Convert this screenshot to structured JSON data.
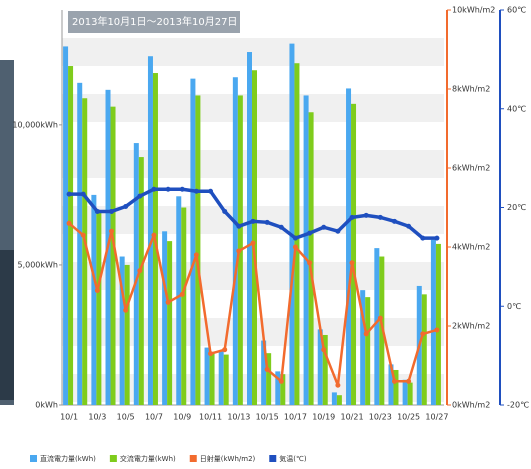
{
  "chart_data": {
    "type": "bar-line",
    "title": "2013年10月1日～2013年10月27日",
    "categories": [
      "10/1",
      null,
      "10/3",
      null,
      "10/5",
      null,
      "10/7",
      null,
      "10/9",
      null,
      "10/11",
      null,
      "10/13",
      null,
      "10/15",
      null,
      "10/17",
      null,
      "10/19",
      null,
      "10/21",
      null,
      "10/23",
      null,
      "10/25",
      null,
      "10/27"
    ],
    "series": [
      {
        "name": "直流電力量(kWh)",
        "color": "#4aa8f0",
        "kind": "bar",
        "axis": "y",
        "values": [
          12800,
          11500,
          7500,
          11250,
          5300,
          9350,
          12450,
          6200,
          7450,
          11650,
          2050,
          1950,
          11700,
          12600,
          2300,
          1200,
          12900,
          11050,
          2700,
          450,
          11300,
          4100,
          5600,
          1450,
          900,
          4250,
          5900
        ]
      },
      {
        "name": "交流電力量(kWh)",
        "color": "#7fcc1c",
        "kind": "bar",
        "axis": "y",
        "values": [
          12100,
          10950,
          6950,
          10650,
          5000,
          8850,
          11850,
          5850,
          7050,
          11050,
          1900,
          1800,
          11050,
          11950,
          1850,
          1100,
          12200,
          10450,
          2500,
          350,
          10750,
          3850,
          5300,
          1250,
          800,
          3950,
          5750
        ]
      },
      {
        "name": "日射量(kWh/m2)",
        "color": "#f26b2e",
        "kind": "line",
        "axis": "y2",
        "values": [
          4.6,
          4.3,
          2.9,
          4.4,
          2.4,
          3.4,
          4.3,
          2.6,
          2.8,
          3.8,
          1.3,
          1.4,
          3.9,
          4.1,
          0.9,
          0.6,
          4.0,
          3.6,
          1.4,
          0.5,
          3.6,
          1.8,
          2.2,
          0.6,
          0.6,
          1.8,
          1.9
        ]
      },
      {
        "name": "気温(℃)",
        "color": "#1f4fbf",
        "kind": "line",
        "axis": "y3",
        "values": [
          22.7,
          22.7,
          19.2,
          19.2,
          20.2,
          22.3,
          23.7,
          23.7,
          23.7,
          23.3,
          23.3,
          19.2,
          16.2,
          17.2,
          17.0,
          16.0,
          13.8,
          14.8,
          16.0,
          15.2,
          18.0,
          18.4,
          18.0,
          17.2,
          16.2,
          13.8,
          13.8
        ]
      }
    ],
    "ylim": [
      0,
      14100
    ],
    "yticks": [
      {
        "value": 0,
        "label": "0kWh"
      },
      {
        "value": 5000,
        "label": "5,000kWh"
      },
      {
        "value": 10000,
        "label": "10,000kWh"
      }
    ],
    "y2lim": [
      0,
      10
    ],
    "y2ticks": [
      {
        "value": 0,
        "label": "0kWh/m2"
      },
      {
        "value": 2,
        "label": "2kWh/m2"
      },
      {
        "value": 4,
        "label": "4kWh/m2"
      },
      {
        "value": 6,
        "label": "6kWh/m2"
      },
      {
        "value": 8,
        "label": "8kWh/m2"
      },
      {
        "value": 10,
        "label": "10kWh/m2"
      }
    ],
    "y3lim": [
      -20,
      60
    ],
    "y3ticks": [
      {
        "value": -20,
        "label": "-20℃"
      },
      {
        "value": 0,
        "label": "0℃"
      },
      {
        "value": 20,
        "label": "20℃"
      },
      {
        "value": 40,
        "label": "40℃"
      },
      {
        "value": 60,
        "label": "60℃"
      }
    ]
  }
}
